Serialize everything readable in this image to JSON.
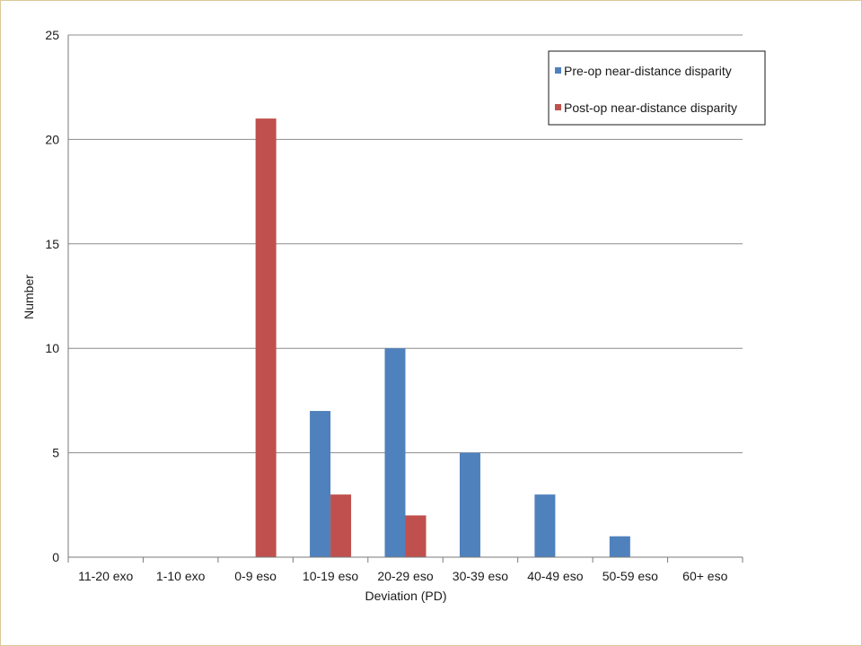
{
  "chart_data": {
    "type": "bar",
    "title": "",
    "xlabel": "Deviation (PD)",
    "ylabel": "Number",
    "ylim": [
      0,
      25
    ],
    "yticks": [
      0,
      5,
      10,
      15,
      20,
      25
    ],
    "grid": true,
    "legend_position": "top-right",
    "categories": [
      "11-20 exo",
      "1-10 exo",
      "0-9 eso",
      "10-19 eso",
      "20-29 eso",
      "30-39 eso",
      "40-49 eso",
      "50-59 eso",
      "60+ eso"
    ],
    "series": [
      {
        "name": "Pre-op near-distance disparity",
        "color": "#4f81bd",
        "values": [
          0,
          0,
          0,
          7,
          10,
          5,
          3,
          1,
          0
        ]
      },
      {
        "name": "Post-op near-distance disparity",
        "color": "#c0504d",
        "values": [
          0,
          0,
          21,
          3,
          2,
          0,
          0,
          0,
          0
        ]
      }
    ]
  }
}
